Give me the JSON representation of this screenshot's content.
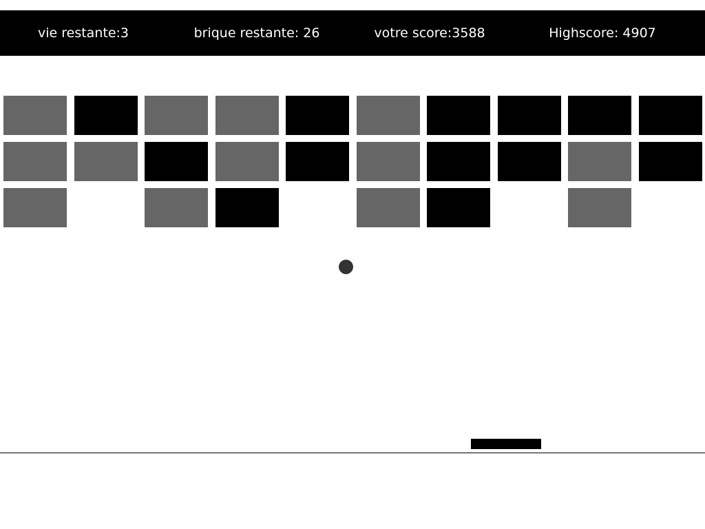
{
  "hud": {
    "lives": "vie restante:3",
    "bricks_left": "brique restante: 26",
    "score": "votre score:3588",
    "highscore": "Highscore: 4907"
  },
  "colors": {
    "hud_background": "#000000",
    "hud_text": "#ffffff",
    "brick_gray": "#666666",
    "brick_black": "#000000",
    "ball": "#333333",
    "paddle": "#000000",
    "floor_line": "#000000"
  },
  "bricks": [
    [
      "gray",
      "black",
      "gray",
      "gray",
      "black",
      "gray",
      "black",
      "black",
      "black",
      "black"
    ],
    [
      "gray",
      "gray",
      "black",
      "gray",
      "black",
      "gray",
      "black",
      "black",
      "gray",
      "black"
    ],
    [
      "gray",
      null,
      "gray",
      "black",
      null,
      "gray",
      "black",
      null,
      "gray",
      null
    ]
  ]
}
